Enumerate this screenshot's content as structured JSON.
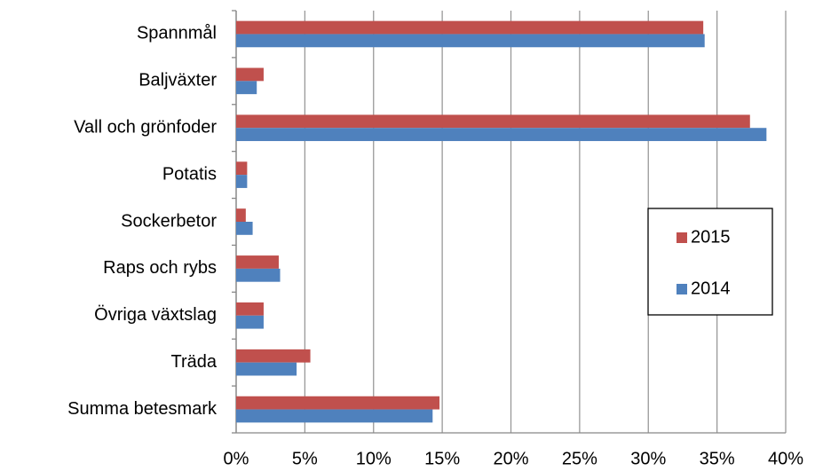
{
  "chart_data": {
    "type": "barh",
    "categories": [
      "Spannmål",
      "Baljväxter",
      "Vall och grönfoder",
      "Potatis",
      "Sockerbetor",
      "Raps och rybs",
      "Övriga växtslag",
      "Träda",
      "Summa betesmark"
    ],
    "series": [
      {
        "name": "2015",
        "color": "#c0504d",
        "values": [
          34.0,
          2.0,
          37.4,
          0.8,
          0.7,
          3.1,
          2.0,
          5.4,
          14.8
        ]
      },
      {
        "name": "2014",
        "color": "#4f81bd",
        "values": [
          34.1,
          1.5,
          38.6,
          0.8,
          1.2,
          3.2,
          2.0,
          4.4,
          14.3
        ]
      }
    ],
    "xlim": [
      0,
      40
    ],
    "xticks": [
      {
        "value": 0,
        "label": "0%"
      },
      {
        "value": 5,
        "label": "5%"
      },
      {
        "value": 10,
        "label": "10%"
      },
      {
        "value": 15,
        "label": "15%"
      },
      {
        "value": 20,
        "label": "20%"
      },
      {
        "value": 25,
        "label": "25%"
      },
      {
        "value": 30,
        "label": "30%"
      },
      {
        "value": 35,
        "label": "35%"
      },
      {
        "value": 40,
        "label": "40%"
      }
    ],
    "grid": true
  }
}
